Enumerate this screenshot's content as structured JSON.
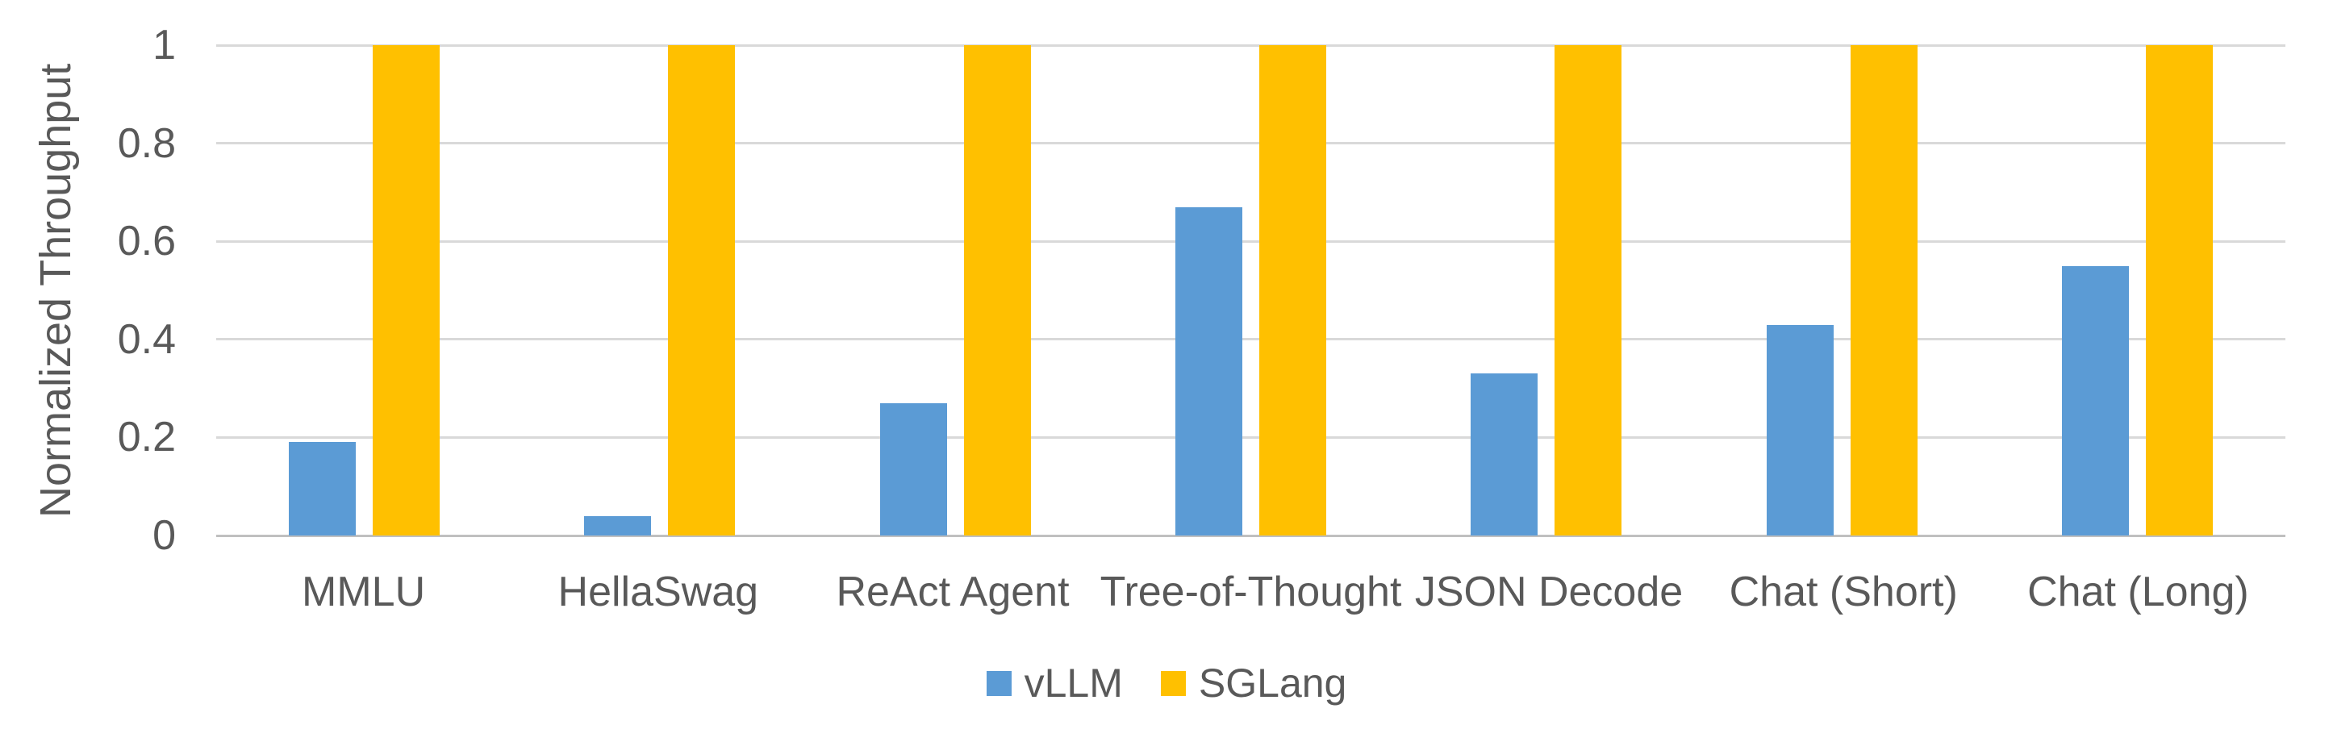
{
  "chart_data": {
    "type": "bar",
    "title": "",
    "xlabel": "",
    "ylabel": "Normalized Throughput",
    "categories": [
      "MMLU",
      "HellaSwag",
      "ReAct Agent",
      "Tree-of-Thought",
      "JSON Decode",
      "Chat (Short)",
      "Chat (Long)"
    ],
    "series": [
      {
        "name": "vLLM",
        "color": "#5B9BD5",
        "values": [
          0.19,
          0.04,
          0.27,
          0.67,
          0.33,
          0.43,
          0.55
        ]
      },
      {
        "name": "SGLang",
        "color": "#FFC000",
        "values": [
          1,
          1,
          1,
          1,
          1,
          1,
          1
        ]
      }
    ],
    "ylim": [
      0,
      1
    ],
    "yticks": [
      0,
      0.2,
      0.4,
      0.6,
      0.8,
      1
    ],
    "ytick_labels": [
      "0",
      "0.2",
      "0.4",
      "0.6",
      "0.8",
      "1"
    ],
    "grid": true,
    "legend_position": "bottom",
    "colors": {
      "background": "#FFFFFF",
      "text": "#595959",
      "gridline": "#D9D9D9",
      "axis_line": "#C0C0C0"
    }
  }
}
